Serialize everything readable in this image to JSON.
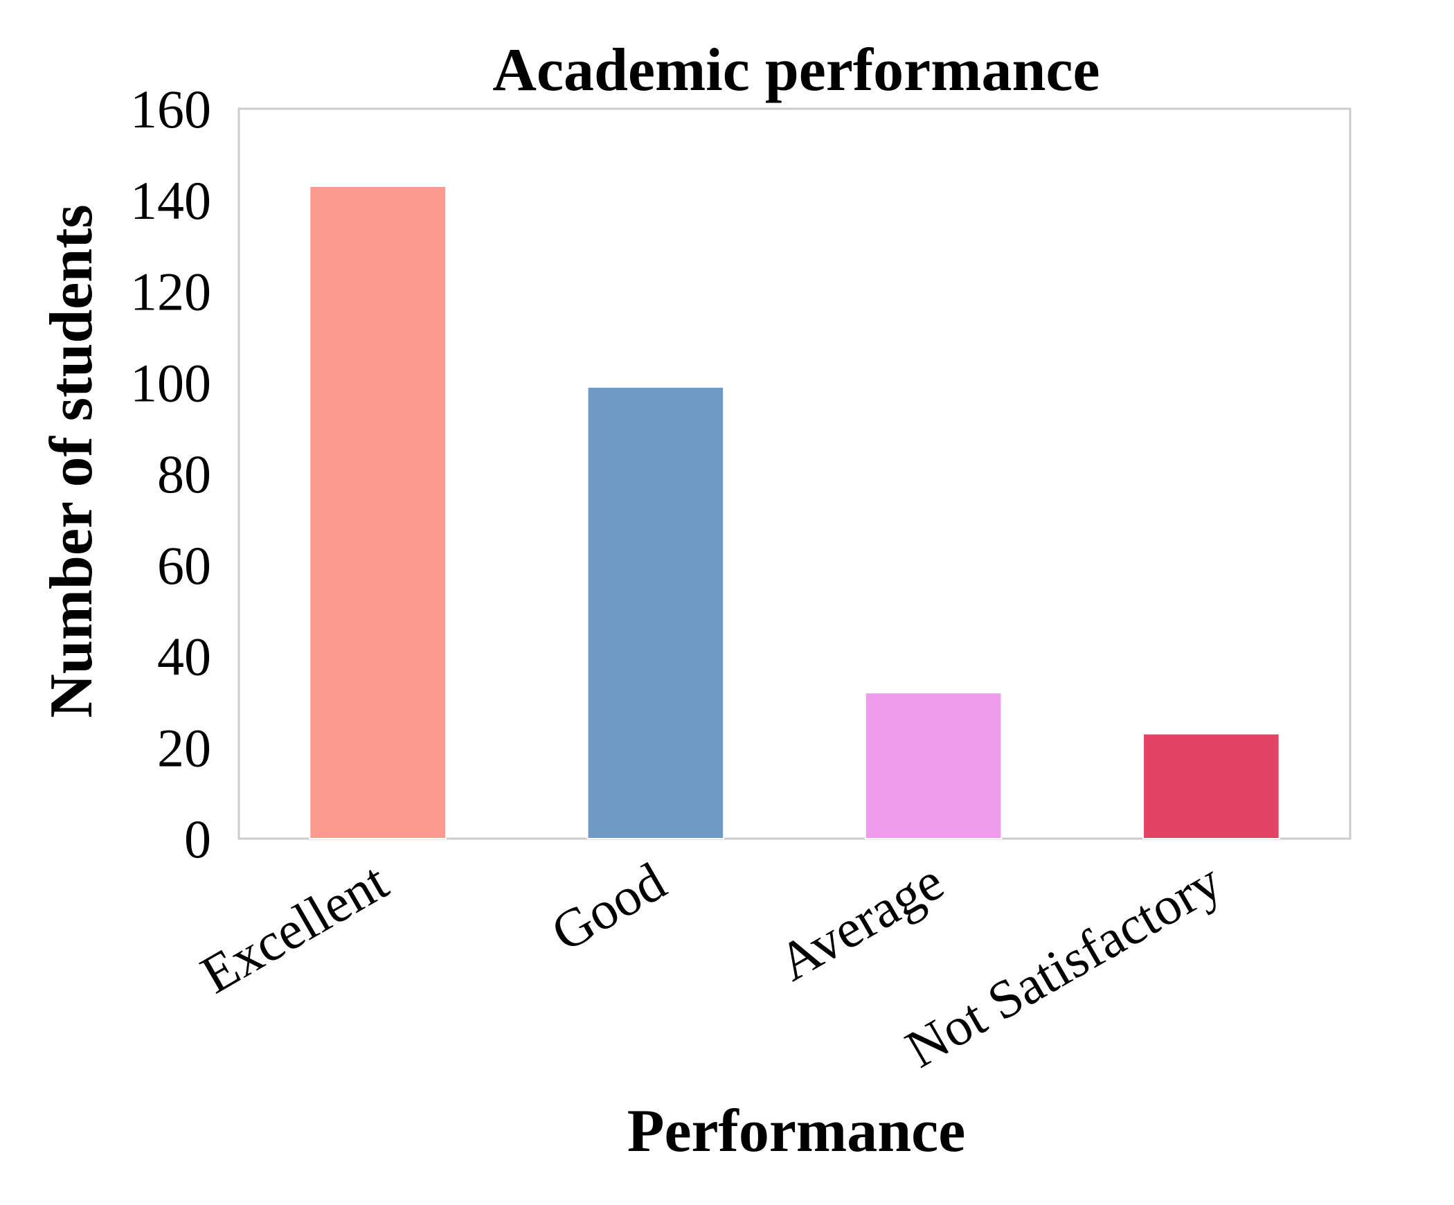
{
  "chart_data": {
    "type": "bar",
    "title": "Academic performance",
    "xlabel": "Performance",
    "ylabel": "Number of students",
    "categories": [
      "Excellent",
      "Good",
      "Average",
      "Not Satisfactory"
    ],
    "values": [
      143,
      99,
      32,
      23
    ],
    "colors": [
      "#fb998e",
      "#6d9bc3",
      "#f09ced",
      "#e24466"
    ],
    "ylim": [
      0,
      160
    ],
    "yticks": [
      "0",
      "20",
      "40",
      "60",
      "80",
      "100",
      "120",
      "140",
      "160"
    ],
    "xtick_rotation": "30 degrees counter-clockwise",
    "grid": false,
    "frame_color": "#cccccc"
  }
}
